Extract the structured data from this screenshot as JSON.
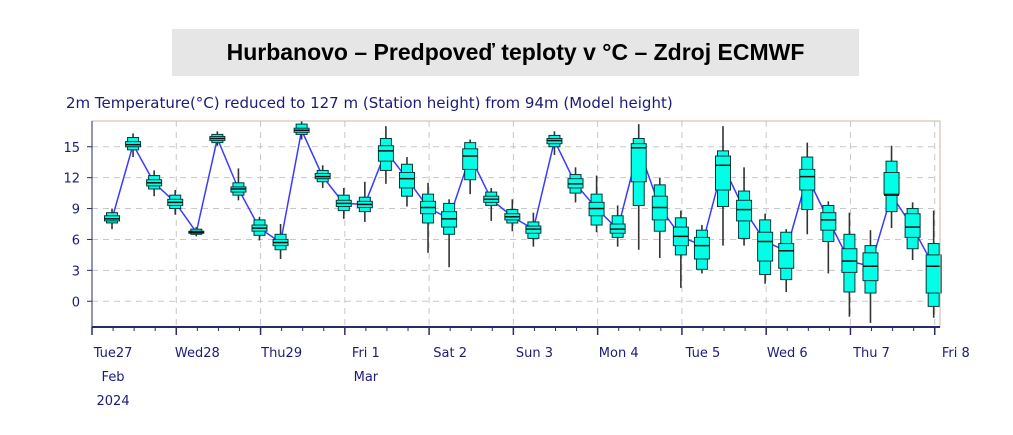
{
  "title": "Hurbanovo – Predpoveď teploty v °C – Zdroj ECMWF",
  "colors": {
    "box_fill": "#00ffe6",
    "box_stroke": "#003a3a",
    "median_line": "#3a3aff",
    "axis": "#2a2a6a",
    "text": "#1c1c78",
    "sunday_label": "#ff2020",
    "grid": "#c8c8c8",
    "plot_border": "#c9b9a6"
  },
  "chart_data": {
    "type": "boxplot",
    "subtitle": "2m Temperature(°C) reduced to 127 m (Station height) from 94m (Model height)",
    "ylim": [
      -2.5,
      17.5
    ],
    "yticks": [
      0,
      3,
      6,
      9,
      12,
      15
    ],
    "grid": true,
    "xlim": [
      0,
      40.25
    ],
    "x_unit": "6-hour steps from Tue 27 Feb 2024 00:00",
    "day_labels": [
      {
        "x": 1,
        "day": "Tue27",
        "line2": "Feb",
        "line3": "2024",
        "color": "text"
      },
      {
        "x": 5,
        "day": "Wed28",
        "line2": "",
        "line3": "",
        "color": "text"
      },
      {
        "x": 9,
        "day": "Thu29",
        "line2": "",
        "line3": "",
        "color": "text"
      },
      {
        "x": 13,
        "day": "Fri 1",
        "line2": "Mar",
        "line3": "",
        "color": "text"
      },
      {
        "x": 17,
        "day": "Sat 2",
        "line2": "",
        "line3": "",
        "color": "text"
      },
      {
        "x": 21,
        "day": "Sun 3",
        "line2": "",
        "line3": "",
        "color": "sunday_label"
      },
      {
        "x": 25,
        "day": "Mon 4",
        "line2": "",
        "line3": "",
        "color": "text"
      },
      {
        "x": 29,
        "day": "Tue 5",
        "line2": "",
        "line3": "",
        "color": "text"
      },
      {
        "x": 33,
        "day": "Wed 6",
        "line2": "",
        "line3": "",
        "color": "text"
      },
      {
        "x": 37,
        "day": "Thu 7",
        "line2": "",
        "line3": "",
        "color": "text"
      },
      {
        "x": 41,
        "day": "Fri 8",
        "line2": "",
        "line3": "",
        "color": "text"
      }
    ],
    "boxes": [
      {
        "x": 0.95,
        "min": 7.0,
        "q1": 7.6,
        "p25": 7.8,
        "med": 8.0,
        "p75": 8.3,
        "q3": 8.6,
        "max": 9.0
      },
      {
        "x": 1.95,
        "min": 14.0,
        "q1": 14.7,
        "p25": 15.0,
        "med": 15.2,
        "p75": 15.5,
        "q3": 15.9,
        "max": 16.3
      },
      {
        "x": 2.95,
        "min": 10.2,
        "q1": 10.9,
        "p25": 11.2,
        "med": 11.5,
        "p75": 11.8,
        "q3": 12.2,
        "max": 12.7
      },
      {
        "x": 3.95,
        "min": 8.4,
        "q1": 9.0,
        "p25": 9.3,
        "med": 9.6,
        "p75": 9.9,
        "q3": 10.3,
        "max": 10.8
      },
      {
        "x": 4.95,
        "min": 6.3,
        "q1": 6.5,
        "p25": 6.6,
        "med": 6.7,
        "p75": 6.8,
        "q3": 7.0,
        "max": 7.2
      },
      {
        "x": 5.95,
        "min": 15.1,
        "q1": 15.4,
        "p25": 15.6,
        "med": 15.8,
        "p75": 16.0,
        "q3": 16.2,
        "max": 16.5
      },
      {
        "x": 6.95,
        "min": 9.8,
        "q1": 10.3,
        "p25": 10.6,
        "med": 10.9,
        "p75": 11.1,
        "q3": 11.5,
        "max": 12.9
      },
      {
        "x": 7.95,
        "min": 5.9,
        "q1": 6.4,
        "p25": 6.8,
        "med": 7.1,
        "p75": 7.4,
        "q3": 7.9,
        "max": 8.2
      },
      {
        "x": 8.95,
        "min": 4.1,
        "q1": 5.0,
        "p25": 5.4,
        "med": 5.7,
        "p75": 6.0,
        "q3": 6.5,
        "max": 7.5
      },
      {
        "x": 9.95,
        "min": 15.7,
        "q1": 16.2,
        "p25": 16.4,
        "med": 16.6,
        "p75": 16.8,
        "q3": 17.2,
        "max": 17.5
      },
      {
        "x": 10.95,
        "min": 11.0,
        "q1": 11.6,
        "p25": 11.9,
        "med": 12.1,
        "p75": 12.4,
        "q3": 12.7,
        "max": 13.2
      },
      {
        "x": 11.95,
        "min": 8.0,
        "q1": 8.8,
        "p25": 9.2,
        "med": 9.5,
        "p75": 9.8,
        "q3": 10.3,
        "max": 11.0
      },
      {
        "x": 12.95,
        "min": 7.7,
        "q1": 8.7,
        "p25": 9.1,
        "med": 9.4,
        "p75": 9.7,
        "q3": 10.1,
        "max": 11.6
      },
      {
        "x": 13.95,
        "min": 11.4,
        "q1": 12.7,
        "p25": 13.6,
        "med": 14.6,
        "p75": 15.1,
        "q3": 15.8,
        "max": 17.0
      },
      {
        "x": 14.95,
        "min": 9.2,
        "q1": 10.2,
        "p25": 11.0,
        "med": 11.9,
        "p75": 12.5,
        "q3": 13.3,
        "max": 14.0
      },
      {
        "x": 15.95,
        "min": 4.7,
        "q1": 7.6,
        "p25": 8.5,
        "med": 9.1,
        "p75": 9.7,
        "q3": 10.4,
        "max": 11.5
      },
      {
        "x": 16.95,
        "min": 3.3,
        "q1": 6.5,
        "p25": 7.2,
        "med": 8.0,
        "p75": 8.7,
        "q3": 9.5,
        "max": 9.9
      },
      {
        "x": 17.95,
        "min": 10.4,
        "q1": 11.8,
        "p25": 12.8,
        "med": 14.1,
        "p75": 14.8,
        "q3": 15.4,
        "max": 15.7
      },
      {
        "x": 18.95,
        "min": 7.8,
        "q1": 9.3,
        "p25": 9.6,
        "med": 9.9,
        "p75": 10.2,
        "q3": 10.6,
        "max": 11.0
      },
      {
        "x": 19.95,
        "min": 6.8,
        "q1": 7.6,
        "p25": 7.9,
        "med": 8.2,
        "p75": 8.5,
        "q3": 8.9,
        "max": 9.9
      },
      {
        "x": 20.95,
        "min": 5.3,
        "q1": 6.1,
        "p25": 6.6,
        "med": 7.0,
        "p75": 7.3,
        "q3": 7.7,
        "max": 8.6
      },
      {
        "x": 21.95,
        "min": 14.2,
        "q1": 15.0,
        "p25": 15.3,
        "med": 15.6,
        "p75": 15.8,
        "q3": 16.1,
        "max": 16.5
      },
      {
        "x": 22.95,
        "min": 9.6,
        "q1": 10.5,
        "p25": 11.0,
        "med": 11.4,
        "p75": 11.9,
        "q3": 12.3,
        "max": 13.0
      },
      {
        "x": 23.95,
        "min": 6.7,
        "q1": 7.4,
        "p25": 8.3,
        "med": 9.0,
        "p75": 9.6,
        "q3": 10.4,
        "max": 12.2
      },
      {
        "x": 24.95,
        "min": 5.3,
        "q1": 6.2,
        "p25": 6.6,
        "med": 7.0,
        "p75": 7.5,
        "q3": 8.3,
        "max": 9.3
      },
      {
        "x": 25.95,
        "min": 5.0,
        "q1": 9.3,
        "p25": 11.6,
        "med": 14.9,
        "p75": 15.3,
        "q3": 15.8,
        "max": 17.2
      },
      {
        "x": 26.95,
        "min": 4.2,
        "q1": 6.8,
        "p25": 7.9,
        "med": 9.1,
        "p75": 10.2,
        "q3": 11.3,
        "max": 12.0
      },
      {
        "x": 27.95,
        "min": 1.3,
        "q1": 4.5,
        "p25": 5.4,
        "med": 6.3,
        "p75": 7.2,
        "q3": 8.1,
        "max": 8.8
      },
      {
        "x": 28.95,
        "min": 2.7,
        "q1": 3.1,
        "p25": 4.1,
        "med": 5.4,
        "p75": 6.2,
        "q3": 6.9,
        "max": 7.4
      },
      {
        "x": 29.95,
        "min": 5.4,
        "q1": 9.2,
        "p25": 10.8,
        "med": 13.2,
        "p75": 14.1,
        "q3": 14.6,
        "max": 17.0
      },
      {
        "x": 30.95,
        "min": 5.4,
        "q1": 6.1,
        "p25": 7.8,
        "med": 8.9,
        "p75": 9.8,
        "q3": 10.7,
        "max": 13.0
      },
      {
        "x": 31.95,
        "min": 1.7,
        "q1": 2.6,
        "p25": 3.9,
        "med": 5.8,
        "p75": 6.7,
        "q3": 7.9,
        "max": 8.5
      },
      {
        "x": 32.95,
        "min": 0.9,
        "q1": 2.1,
        "p25": 3.2,
        "med": 4.9,
        "p75": 5.6,
        "q3": 6.7,
        "max": 7.0
      },
      {
        "x": 33.95,
        "min": 6.5,
        "q1": 8.9,
        "p25": 10.8,
        "med": 12.1,
        "p75": 12.8,
        "q3": 14.0,
        "max": 15.4
      },
      {
        "x": 34.95,
        "min": 2.7,
        "q1": 5.8,
        "p25": 6.9,
        "med": 7.9,
        "p75": 8.6,
        "q3": 9.3,
        "max": 9.7
      },
      {
        "x": 35.95,
        "min": -1.5,
        "q1": 0.9,
        "p25": 2.8,
        "med": 3.9,
        "p75": 5.1,
        "q3": 6.5,
        "max": 8.6
      },
      {
        "x": 36.95,
        "min": -2.1,
        "q1": 0.8,
        "p25": 2.0,
        "med": 3.4,
        "p75": 4.7,
        "q3": 5.4,
        "max": 6.9
      },
      {
        "x": 37.95,
        "min": 7.1,
        "q1": 8.7,
        "p25": 10.4,
        "med": 10.3,
        "p75": 12.5,
        "q3": 13.6,
        "max": 15.1
      },
      {
        "x": 38.95,
        "min": 4.0,
        "q1": 5.1,
        "p25": 6.2,
        "med": 7.2,
        "p75": 8.5,
        "q3": 9.0,
        "max": 9.6
      },
      {
        "x": 39.95,
        "min": -1.6,
        "q1": -0.5,
        "p25": 0.8,
        "med": 3.4,
        "p75": 4.5,
        "q3": 5.6,
        "max": 8.8
      }
    ]
  }
}
